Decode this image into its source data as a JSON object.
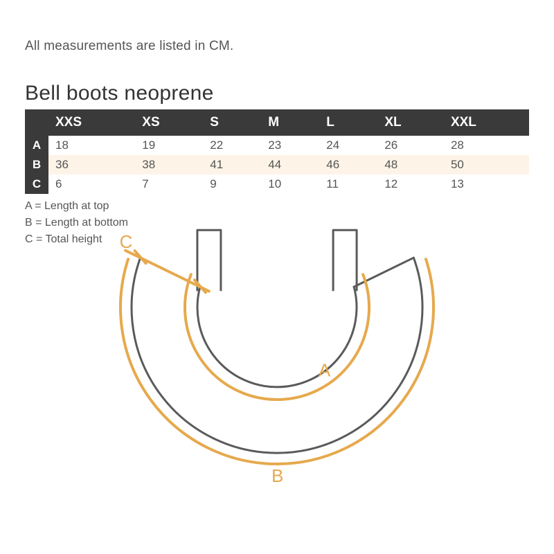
{
  "intro": "All measurements are listed in CM.",
  "title": "Bell boots neoprene",
  "table": {
    "columns": [
      "XXS",
      "XS",
      "S",
      "M",
      "L",
      "XL",
      "XXL"
    ],
    "rows": [
      {
        "label": "A",
        "values": [
          "18",
          "19",
          "22",
          "23",
          "24",
          "26",
          "28"
        ],
        "alt": false
      },
      {
        "label": "B",
        "values": [
          "36",
          "38",
          "41",
          "44",
          "46",
          "48",
          "50"
        ],
        "alt": true
      },
      {
        "label": "C",
        "values": [
          "6",
          "7",
          "9",
          "10",
          "11",
          "12",
          "13"
        ],
        "alt": false
      }
    ]
  },
  "legend": [
    "A = Length at top",
    "B = Length at bottom",
    "C = Total height"
  ],
  "diagram": {
    "outline_color": "#5a5a5a",
    "outline_width": 3,
    "measure_color": "#e6a94d",
    "measure_width": 4,
    "label_color": "#e6a94d",
    "label_fontsize": 26,
    "labels": {
      "A": "A",
      "B": "B",
      "C": "C"
    }
  },
  "colors": {
    "header_bg": "#3a3a3a",
    "header_fg": "#ffffff",
    "alt_row_bg": "#fdf4e7",
    "text": "#555555",
    "title": "#333333"
  }
}
